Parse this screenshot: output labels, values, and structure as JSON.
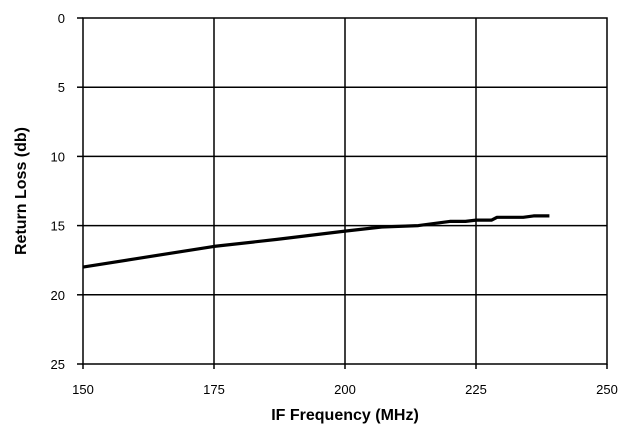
{
  "chart_data": {
    "type": "line",
    "title": "",
    "xlabel": "IF Frequency (MHz)",
    "ylabel": "Return Loss (db)",
    "xlim": [
      150,
      250
    ],
    "ylim": [
      0,
      25
    ],
    "y_inverted": true,
    "x_ticks": [
      "150",
      "175",
      "200",
      "225",
      "250"
    ],
    "y_ticks": [
      "0",
      "5",
      "10",
      "15",
      "20",
      "25"
    ],
    "grid": true,
    "legend": "none",
    "series": [
      {
        "color": "#000000",
        "x": [
          150,
          160,
          175,
          187,
          200,
          207,
          214,
          220,
          223,
          225,
          228,
          229,
          232,
          234,
          236,
          239
        ],
        "y": [
          18.0,
          17.4,
          16.5,
          16.0,
          15.4,
          15.1,
          15.0,
          14.7,
          14.7,
          14.6,
          14.6,
          14.4,
          14.4,
          14.4,
          14.3,
          14.3
        ]
      }
    ]
  }
}
